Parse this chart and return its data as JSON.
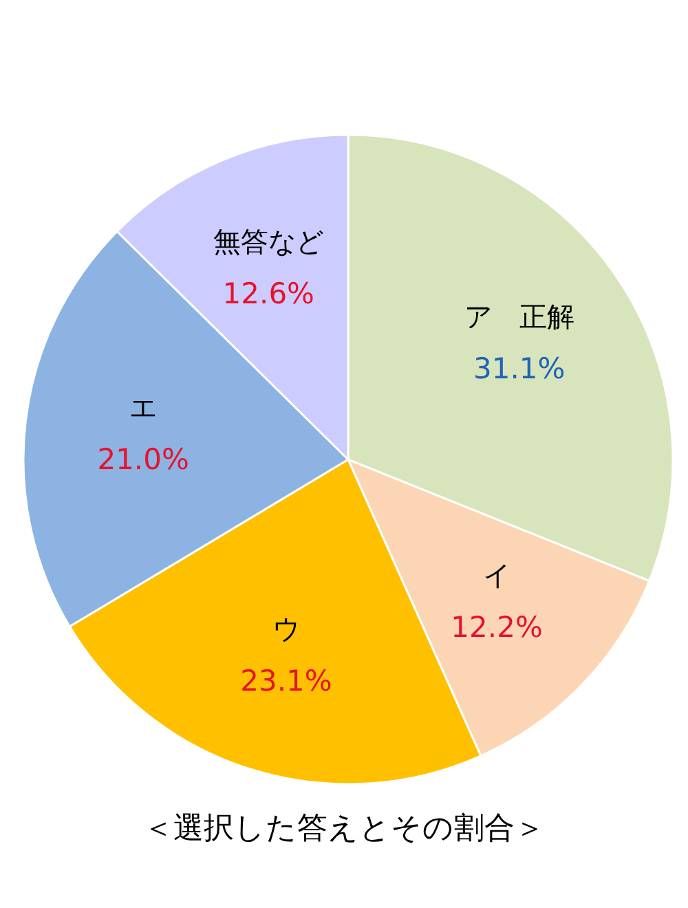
{
  "chart_data": {
    "type": "pie",
    "title": "＜選択した答えとその割合＞",
    "categories": [
      "ア　正解",
      "イ",
      "ウ",
      "エ",
      "無答など"
    ],
    "values": [
      31.1,
      12.2,
      23.1,
      21.0,
      12.6
    ],
    "value_labels": [
      "31.1%",
      "12.2%",
      "23.1%",
      "21.0%",
      "12.6%"
    ],
    "colors": [
      "#d8e4bc",
      "#fcd5b5",
      "#ffc000",
      "#8db3e2",
      "#ccccff"
    ]
  }
}
